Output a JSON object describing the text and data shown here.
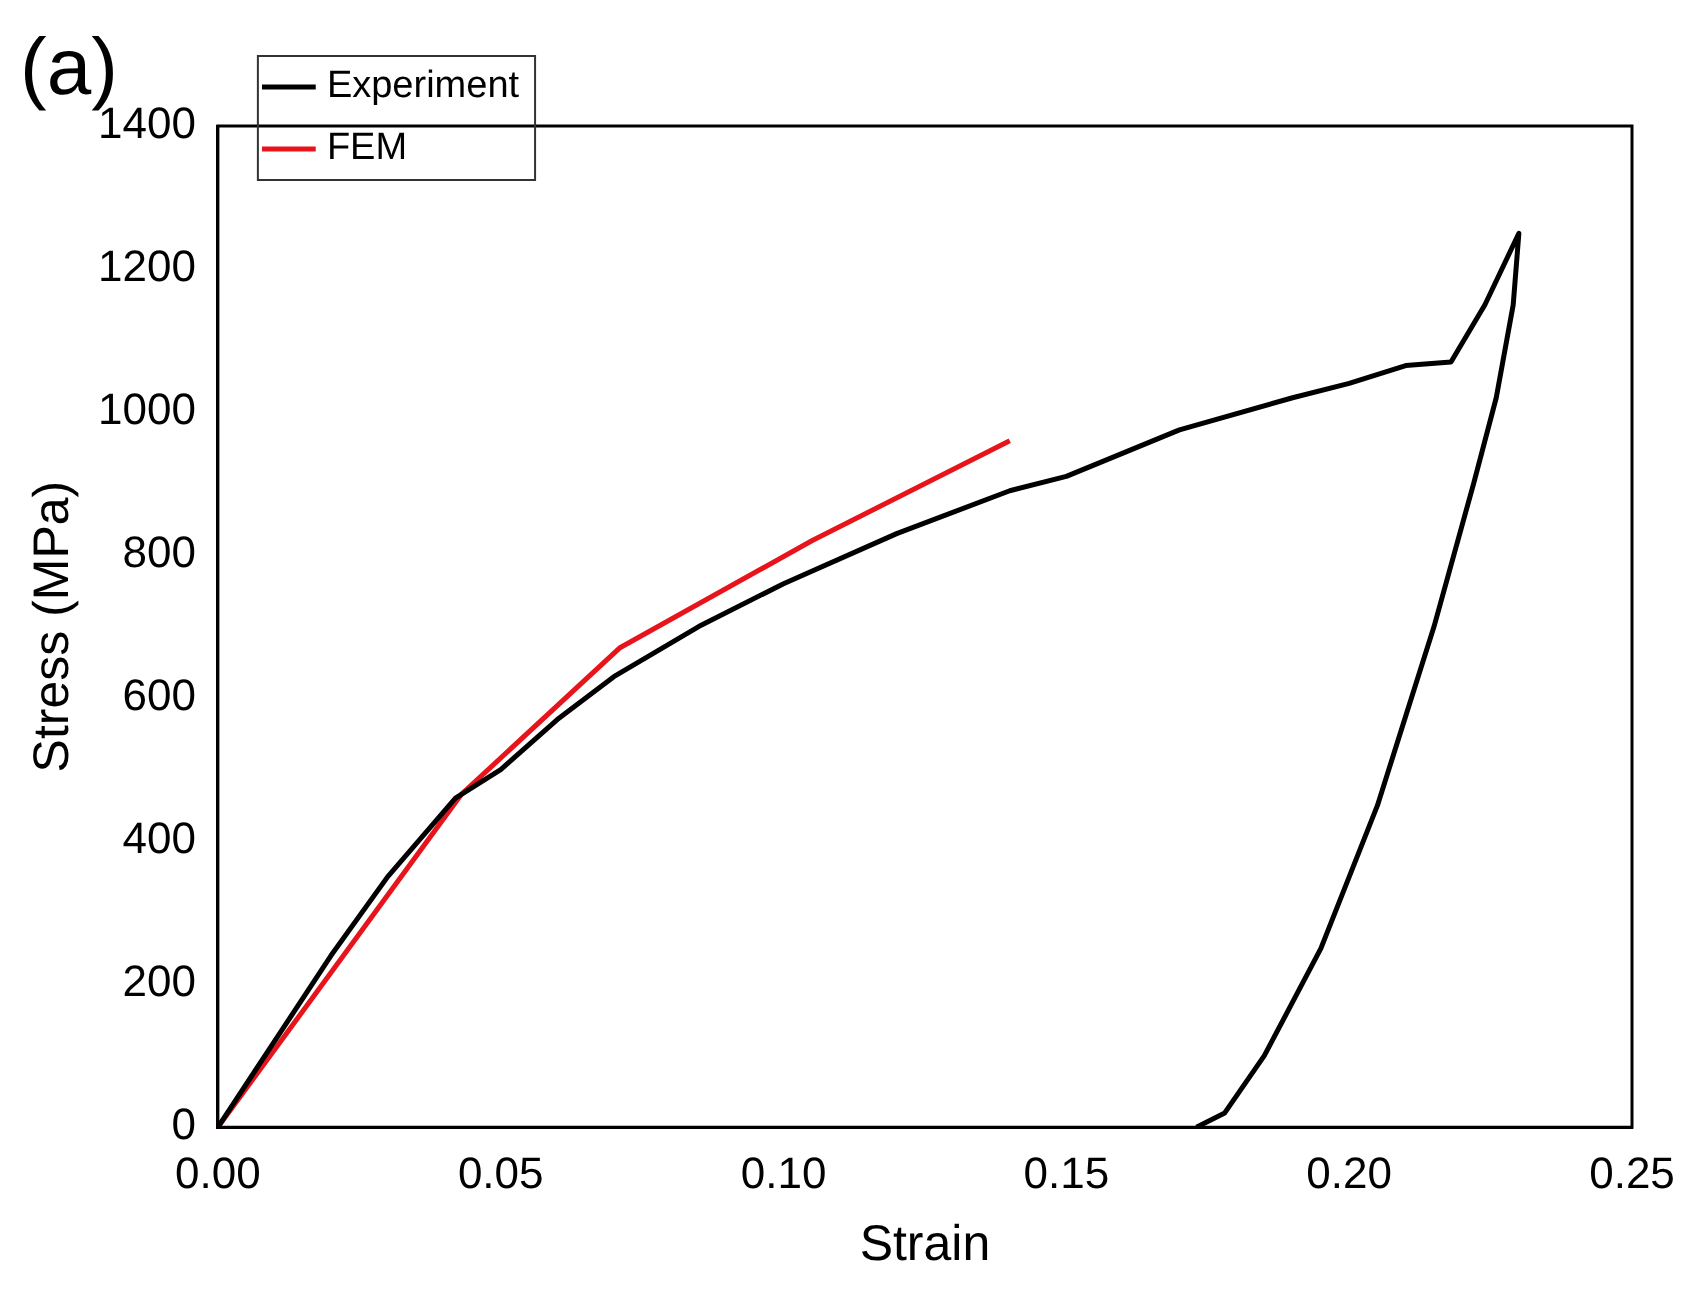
{
  "chart_data": {
    "type": "line",
    "xlabel": "Strain",
    "ylabel": "Stress (MPa)",
    "annotations": [
      "(a)"
    ],
    "xlim": [
      0,
      0.25
    ],
    "xticks": [
      {
        "value": 0,
        "label": "0.00"
      },
      {
        "value": 0.05,
        "label": "0.05"
      },
      {
        "value": 0.1,
        "label": "0.10"
      },
      {
        "value": 0.15,
        "label": "0.15"
      },
      {
        "value": 0.2,
        "label": "0.20"
      },
      {
        "value": 0.25,
        "label": "0.25"
      }
    ],
    "ylim": [
      0,
      1400
    ],
    "yticks": [
      0,
      200,
      400,
      600,
      800,
      1000,
      1200,
      1400
    ],
    "grid": false,
    "legend": "top left",
    "marker": "none",
    "line_style": "solid",
    "series": [
      {
        "name": "Experiment",
        "color": "#000000",
        "x": [
          0,
          0.01,
          0.02,
          0.03,
          0.042,
          0.05,
          0.06,
          0.07,
          0.085,
          0.1,
          0.12,
          0.14,
          0.15,
          0.17,
          0.19,
          0.2,
          0.21,
          0.218,
          0.224,
          0.23,
          0.229,
          0.226,
          0.222,
          0.215,
          0.205,
          0.195,
          0.185,
          0.178,
          0.173
        ],
        "values": [
          0,
          120,
          240,
          350,
          460,
          500,
          570,
          630,
          700,
          760,
          830,
          890,
          910,
          975,
          1020,
          1040,
          1065,
          1070,
          1150,
          1250,
          1150,
          1020,
          900,
          700,
          450,
          250,
          100,
          20,
          0
        ]
      },
      {
        "name": "FEM",
        "color": "#e8141b",
        "x": [
          0,
          0.043,
          0.071,
          0.105,
          0.14
        ],
        "values": [
          0,
          465,
          670,
          820,
          960
        ]
      }
    ]
  }
}
